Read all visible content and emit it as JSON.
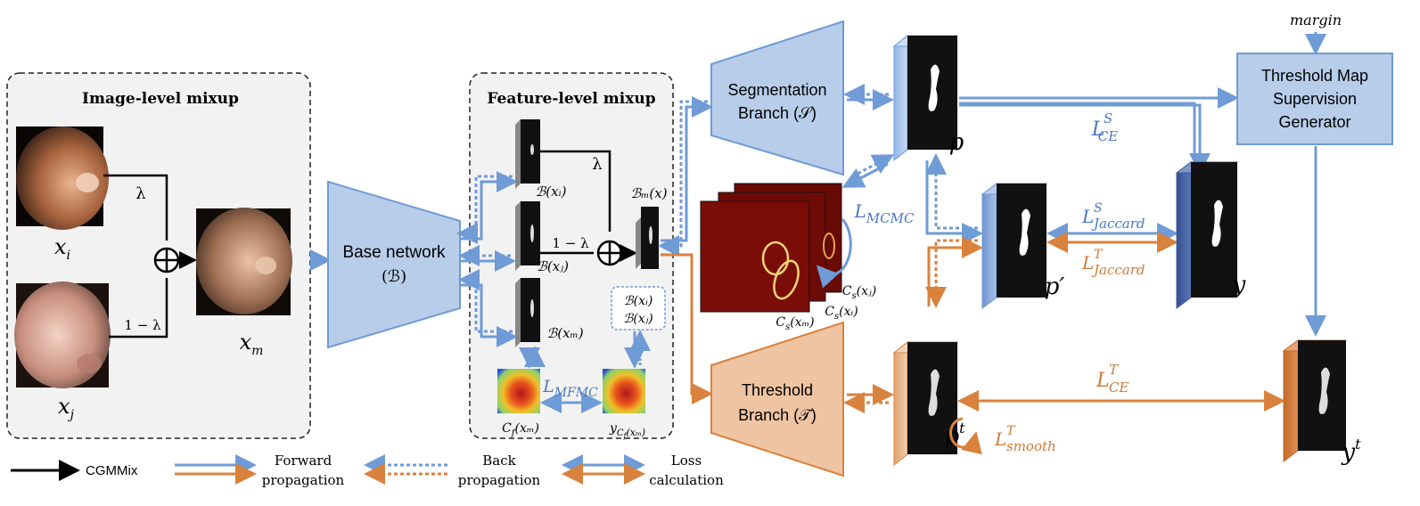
{
  "image_level": {
    "title": "Image-level mixup",
    "xi": "x",
    "xi_sub": "i",
    "xj": "x",
    "xj_sub": "j",
    "xm": "x",
    "xm_sub": "m",
    "lambda": "λ",
    "one_minus_lambda": "1 − λ"
  },
  "base": {
    "line1": "Base network",
    "line2": "(ℬ)"
  },
  "feature_level": {
    "title": "Feature-level mixup",
    "b_xi": "ℬ(xᵢ)",
    "b_xj": "ℬ(xⱼ)",
    "b_xm": "ℬ(xₘ)",
    "bm_x": "ℬₘ(x)",
    "lambda": "λ",
    "one_minus_lambda": "1 − λ",
    "box_line1": "ℬ(xᵢ)",
    "box_line2": "ℬ(xⱼ)",
    "l_mfmc": "L",
    "l_mfmc_sub": "MFMC",
    "cf_xm": "C",
    "cf_xm_sub": "f",
    "cf_xm_arg": "(xₘ)",
    "ycf": "y",
    "ycf_sub": "C",
    "ycf_sub2": "f",
    "ycf_arg": "(xₘ)"
  },
  "seg_branch": {
    "line1": "Segmentation",
    "line2": "Branch (𝒮)"
  },
  "thr_branch": {
    "line1": "Threshold",
    "line2": "Branch (𝒯)"
  },
  "cs": {
    "cs_xj": "C",
    "cs_xj_sub": "s",
    "cs_xj_arg": "(xⱼ)",
    "cs_xi": "C",
    "cs_xi_sub": "s",
    "cs_xi_arg": "(xᵢ)",
    "cs_xm": "C",
    "cs_xm_sub": "s",
    "cs_xm_arg": "(xₘ)"
  },
  "l_mcmc": {
    "main": "L",
    "sub": "MCMC"
  },
  "maps": {
    "p": "p",
    "p_prime": "p′",
    "y": "y",
    "pt": "p",
    "pt_sup": "t",
    "yt": "y",
    "yt_sup": "t"
  },
  "losses": {
    "l_ce_s": "L",
    "l_ce_s_sup": "S",
    "l_ce_s_sub": "CE",
    "l_jac_s": "L",
    "l_jac_s_sup": "S",
    "l_jac_s_sub": "Jaccard",
    "l_jac_t": "L",
    "l_jac_t_sup": "T",
    "l_jac_t_sub": "Jaccard",
    "l_ce_t": "L",
    "l_ce_t_sup": "T",
    "l_ce_t_sub": "CE",
    "l_smooth": "L",
    "l_smooth_sup": "T",
    "l_smooth_sub": "smooth"
  },
  "tmsg": {
    "line1": "Threshold Map",
    "line2": "Supervision",
    "line3": "Generator",
    "margin": "margin"
  },
  "legend": {
    "cgmmix": "CGMMix",
    "forward1": "Forward",
    "forward2": "propagation",
    "back1": "Back",
    "back2": "propagation",
    "loss1": "Loss",
    "loss2": "calculation"
  },
  "colors": {
    "blue": "#6f9bd6",
    "blue_fill": "#b7cdea",
    "blue_dark": "#3f5d9e",
    "orange": "#d9823d",
    "orange_fill": "#efc4a2",
    "loss_blue": "#4a78c2",
    "loss_orange": "#cd7a38"
  }
}
